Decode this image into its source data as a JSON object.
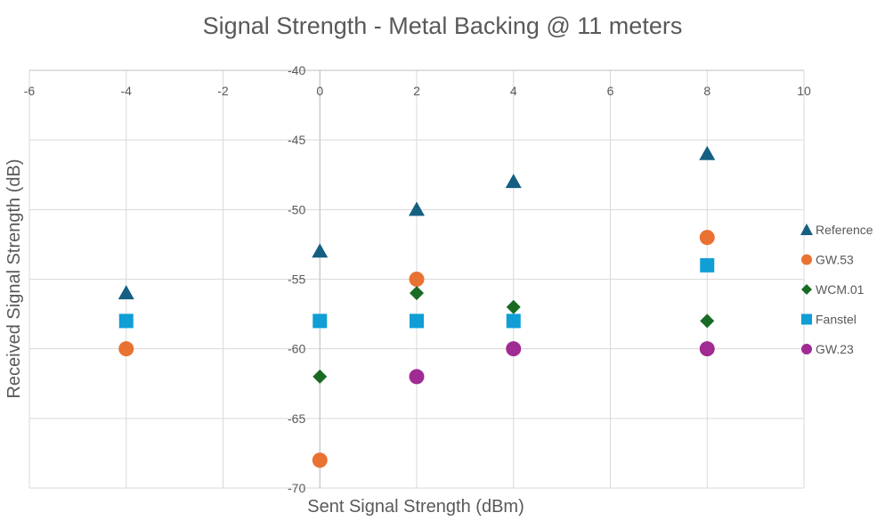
{
  "chart_data": {
    "type": "scatter",
    "title": "Signal Strength - Metal Backing @ 11 meters",
    "xlabel": "Sent Signal Strength (dBm)",
    "ylabel": "Received Signal Strength (dB)",
    "xlim": [
      -6,
      10
    ],
    "ylim": [
      -70,
      -40
    ],
    "xticks": [
      -6,
      -4,
      -2,
      0,
      2,
      4,
      6,
      8,
      10
    ],
    "yticks": [
      -40,
      -45,
      -50,
      -55,
      -60,
      -65,
      -70
    ],
    "grid": true,
    "legend_position": "right",
    "series": [
      {
        "name": "Reference",
        "marker": "triangle",
        "color": "#156082",
        "points": [
          [
            -4,
            -56
          ],
          [
            0,
            -53
          ],
          [
            2,
            -50
          ],
          [
            4,
            -48
          ],
          [
            8,
            -46
          ]
        ]
      },
      {
        "name": "GW.53",
        "marker": "circle",
        "color": "#E97132",
        "points": [
          [
            -4,
            -60
          ],
          [
            0,
            -68
          ],
          [
            2,
            -55
          ],
          [
            8,
            -52
          ]
        ]
      },
      {
        "name": "WCM.01",
        "marker": "diamond",
        "color": "#196B24",
        "points": [
          [
            0,
            -62
          ],
          [
            2,
            -56
          ],
          [
            4,
            -57
          ],
          [
            8,
            -58
          ]
        ]
      },
      {
        "name": "Fanstel",
        "marker": "square",
        "color": "#0F9ED5",
        "points": [
          [
            -4,
            -58
          ],
          [
            0,
            -58
          ],
          [
            2,
            -58
          ],
          [
            4,
            -58
          ],
          [
            8,
            -54
          ]
        ]
      },
      {
        "name": "GW.23",
        "marker": "circle",
        "color": "#A02B93",
        "points": [
          [
            2,
            -62
          ],
          [
            4,
            -60
          ],
          [
            8,
            -60
          ]
        ]
      }
    ]
  }
}
